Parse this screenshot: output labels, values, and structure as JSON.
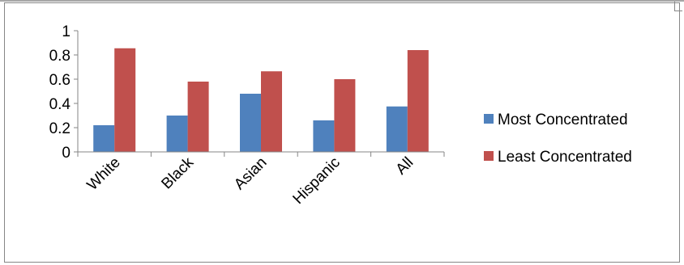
{
  "chart_data": {
    "type": "bar",
    "categories": [
      "White",
      "Black",
      "Asian",
      "Hispanic",
      "All"
    ],
    "series": [
      {
        "name": "Most Concentrated",
        "values": [
          0.22,
          0.3,
          0.48,
          0.26,
          0.375
        ],
        "color": "#4f81bd"
      },
      {
        "name": "Least Concentrated",
        "values": [
          0.855,
          0.58,
          0.665,
          0.6,
          0.84
        ],
        "color": "#c0504d"
      }
    ],
    "yticks": [
      "0",
      "0.2",
      "0.4",
      "0.6",
      "0.8",
      "1"
    ],
    "ylim": [
      0,
      1
    ],
    "legend_position": "right",
    "grid": false
  }
}
